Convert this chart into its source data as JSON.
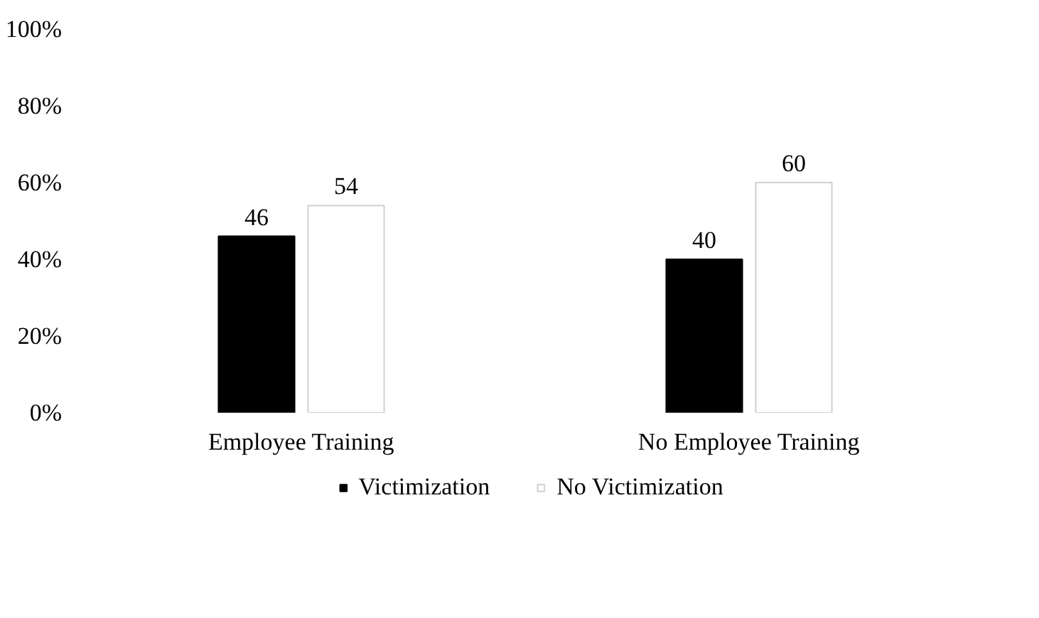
{
  "chart_data": {
    "type": "bar",
    "categories": [
      "Employee Training",
      "No Employee Training"
    ],
    "series": [
      {
        "name": "Victimization",
        "color": "#000000",
        "values": [
          46,
          40
        ]
      },
      {
        "name": "No Victimization",
        "color": "#ffffff",
        "values": [
          54,
          60
        ]
      }
    ],
    "ylim": [
      0,
      100
    ],
    "yticks": [
      {
        "value": 0,
        "label": "0%"
      },
      {
        "value": 20,
        "label": "20%"
      },
      {
        "value": 40,
        "label": "40%"
      },
      {
        "value": 60,
        "label": "60%"
      },
      {
        "value": 80,
        "label": "80%"
      },
      {
        "value": 100,
        "label": "100%"
      }
    ],
    "data_labels": true,
    "grid": false,
    "legend": "bottom"
  }
}
